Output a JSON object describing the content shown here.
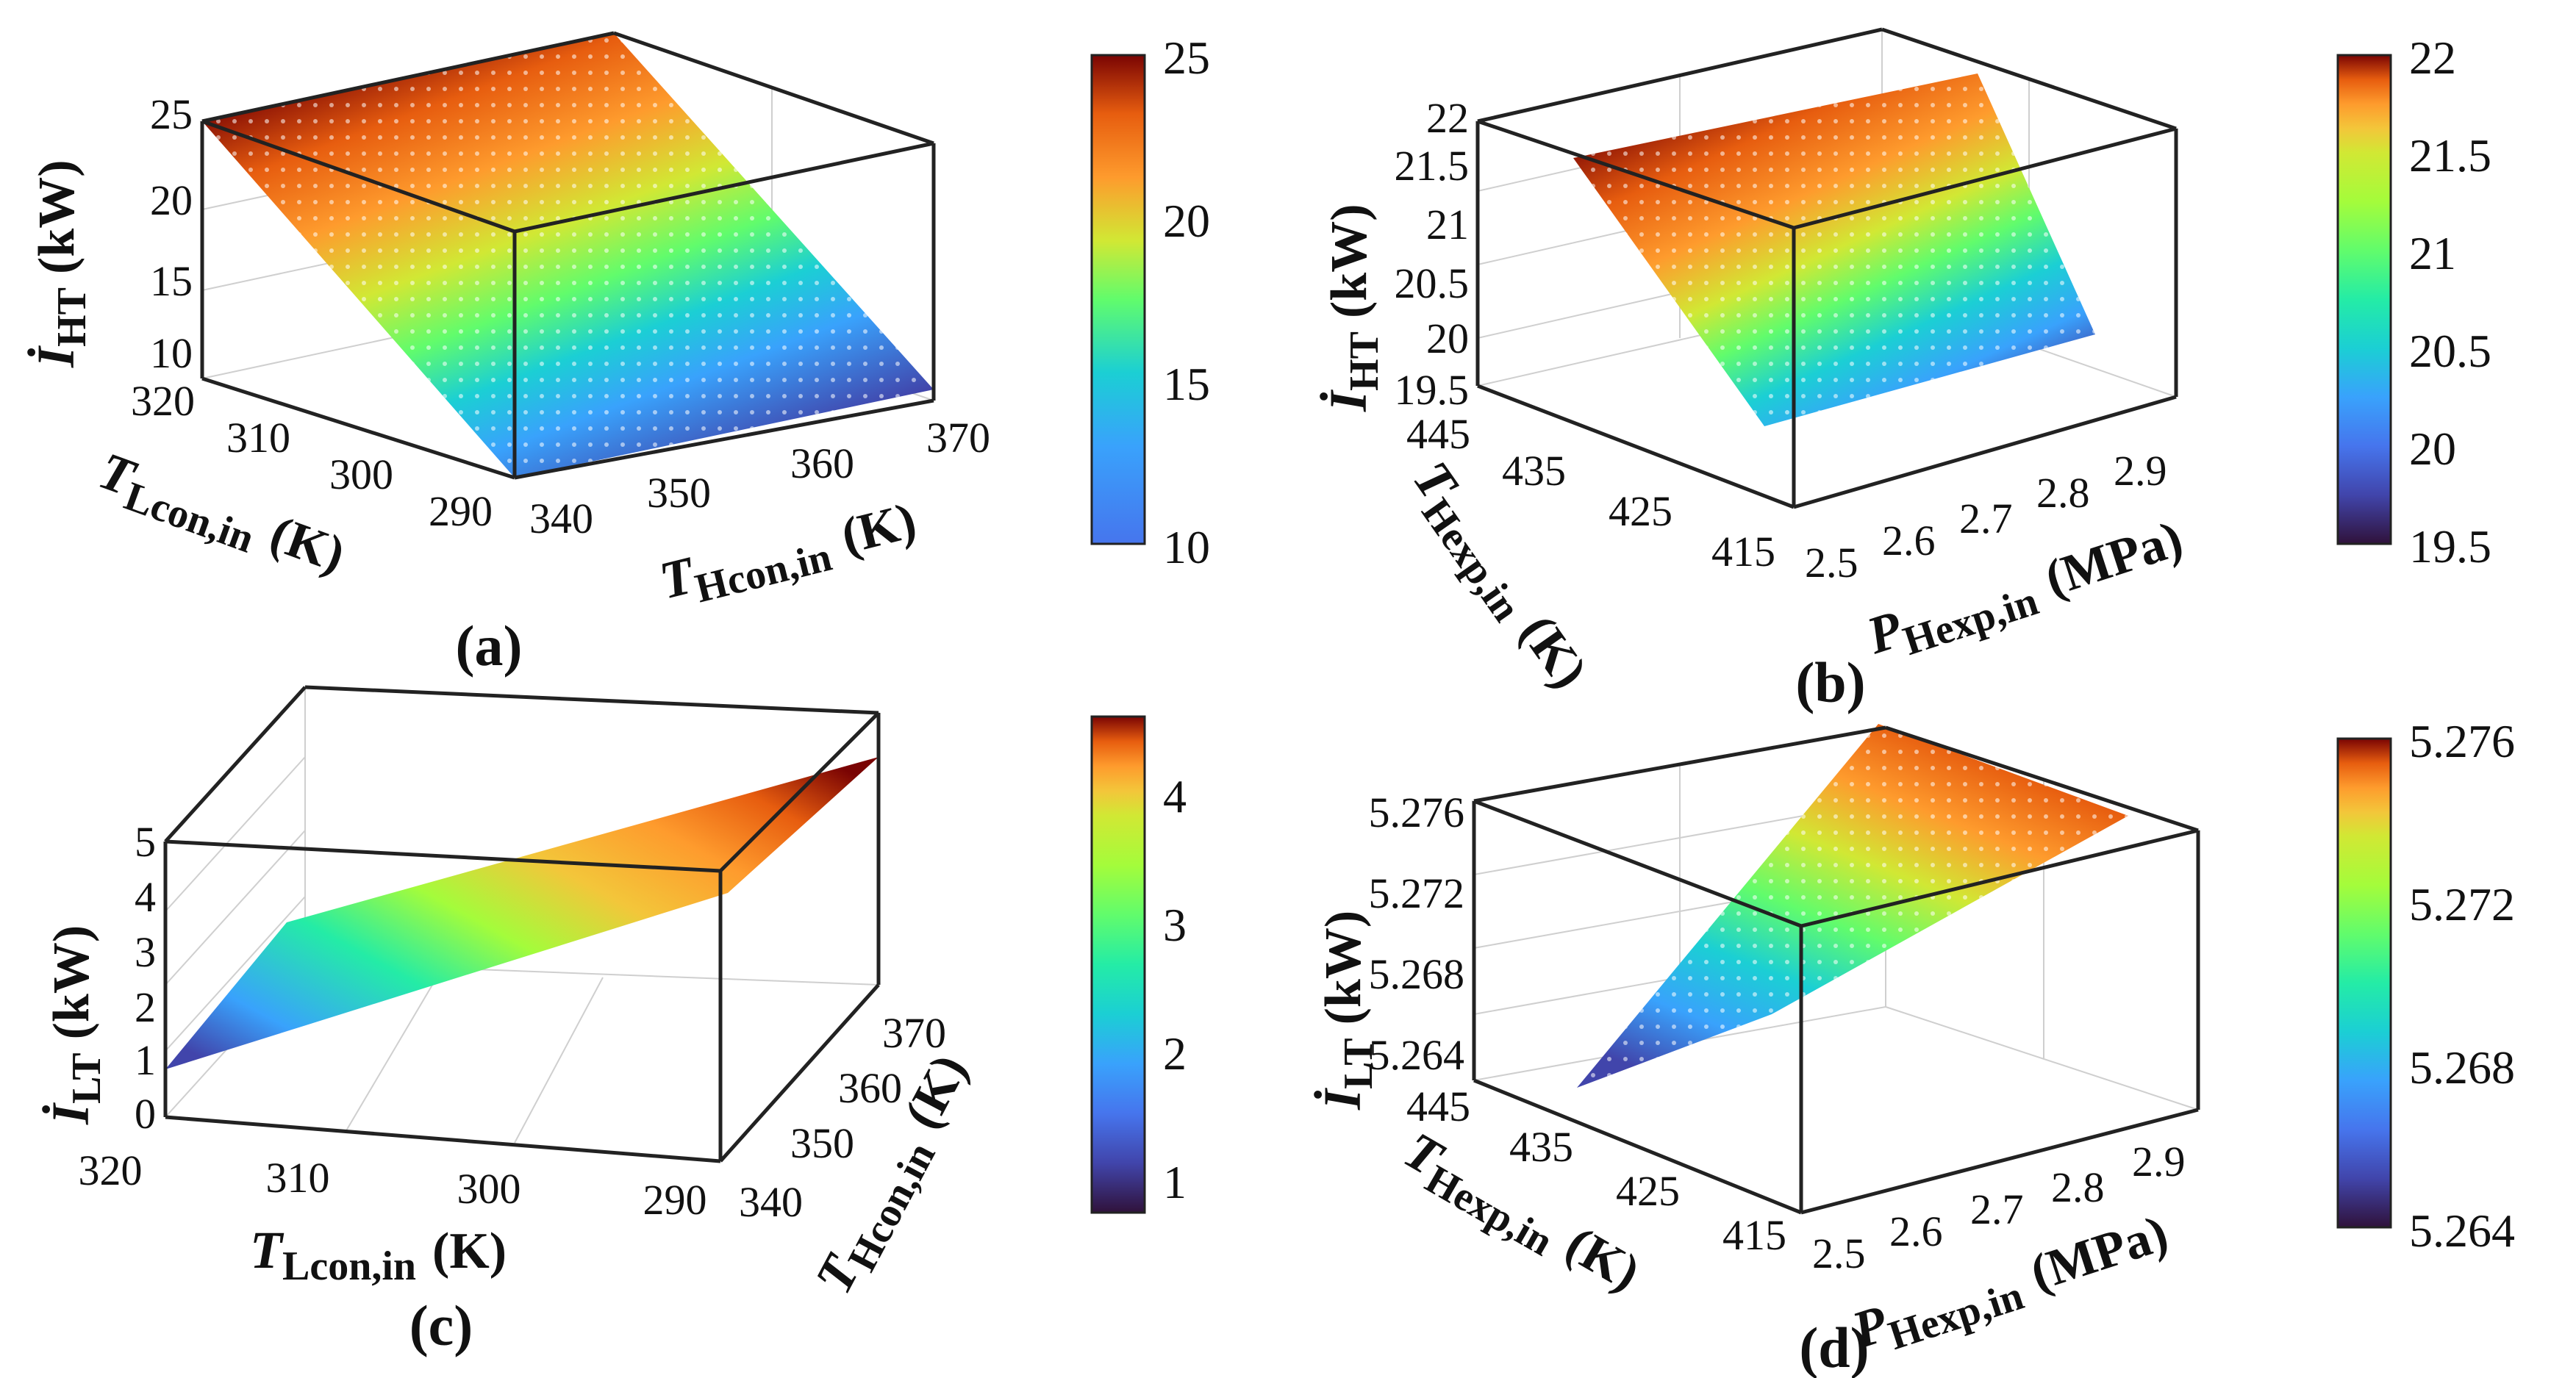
{
  "chart_data": [
    {
      "type": "surface",
      "panel": "(a)",
      "zlabel": "İ",
      "zlabel_sub": "HT",
      "zlabel_unit": "(kW)",
      "xlabel": "T",
      "xlabel_sub": "Lcon,in",
      "xlabel_unit": "(K)",
      "ylabel": "T",
      "ylabel_sub": "Hcon,in",
      "ylabel_unit": "(K)",
      "z_ticks": [
        "25",
        "20",
        "15",
        "10"
      ],
      "x_ticks": [
        "320",
        "310",
        "300",
        "290"
      ],
      "y_ticks": [
        "340",
        "350",
        "360",
        "370"
      ],
      "zlim": [
        10,
        25
      ],
      "colorbar": {
        "min": 10,
        "max": 25,
        "ticks": [
          "25",
          "20",
          "15",
          "10"
        ]
      }
    },
    {
      "type": "surface",
      "panel": "(b)",
      "zlabel": "İ",
      "zlabel_sub": "HT",
      "zlabel_unit": "(kW)",
      "xlabel": "T",
      "xlabel_sub": "Hexp,in",
      "xlabel_unit": "(K)",
      "ylabel": "P",
      "ylabel_sub": "Hexp,in",
      "ylabel_unit": "(MPa)",
      "z_ticks": [
        "22",
        "21.5",
        "21",
        "20.5",
        "20",
        "19.5"
      ],
      "x_ticks": [
        "445",
        "435",
        "425",
        "415"
      ],
      "y_ticks": [
        "2.5",
        "2.6",
        "2.7",
        "2.8",
        "2.9"
      ],
      "zlim": [
        19.5,
        22
      ],
      "colorbar": {
        "min": 19.5,
        "max": 22,
        "ticks": [
          "22",
          "21.5",
          "21",
          "20.5",
          "20",
          "19.5"
        ]
      }
    },
    {
      "type": "surface",
      "panel": "(c)",
      "zlabel": "İ",
      "zlabel_sub": "LT",
      "zlabel_unit": "(kW)",
      "xlabel": "T",
      "xlabel_sub": "Lcon,in",
      "xlabel_unit": "(K)",
      "ylabel": "T",
      "ylabel_sub": "Hcon,in",
      "ylabel_unit": "(K)",
      "z_ticks": [
        "5",
        "4",
        "3",
        "2",
        "1",
        "0"
      ],
      "x_ticks": [
        "320",
        "310",
        "300",
        "290"
      ],
      "y_ticks": [
        "340",
        "350",
        "360",
        "370"
      ],
      "zlim": [
        0,
        5
      ],
      "colorbar": {
        "min": 0.7,
        "max": 4.5,
        "ticks": [
          "4",
          "3",
          "2",
          "1"
        ]
      }
    },
    {
      "type": "surface",
      "panel": "(d)",
      "zlabel": "İ",
      "zlabel_sub": "LT",
      "zlabel_unit": "(kW)",
      "xlabel": "T",
      "xlabel_sub": "Hexp,in",
      "xlabel_unit": "(K)",
      "ylabel": "P",
      "ylabel_sub": "Hexp,in",
      "ylabel_unit": "(MPa)",
      "z_ticks": [
        "5.276",
        "5.272",
        "5.268",
        "5.264"
      ],
      "x_ticks": [
        "445",
        "435",
        "425",
        "415"
      ],
      "y_ticks": [
        "2.5",
        "2.6",
        "2.7",
        "2.8",
        "2.9"
      ],
      "zlim": [
        5.264,
        5.276
      ],
      "colorbar": {
        "min": 5.264,
        "max": 5.276,
        "ticks": [
          "5.276",
          "5.272",
          "5.268",
          "5.264"
        ]
      }
    }
  ]
}
